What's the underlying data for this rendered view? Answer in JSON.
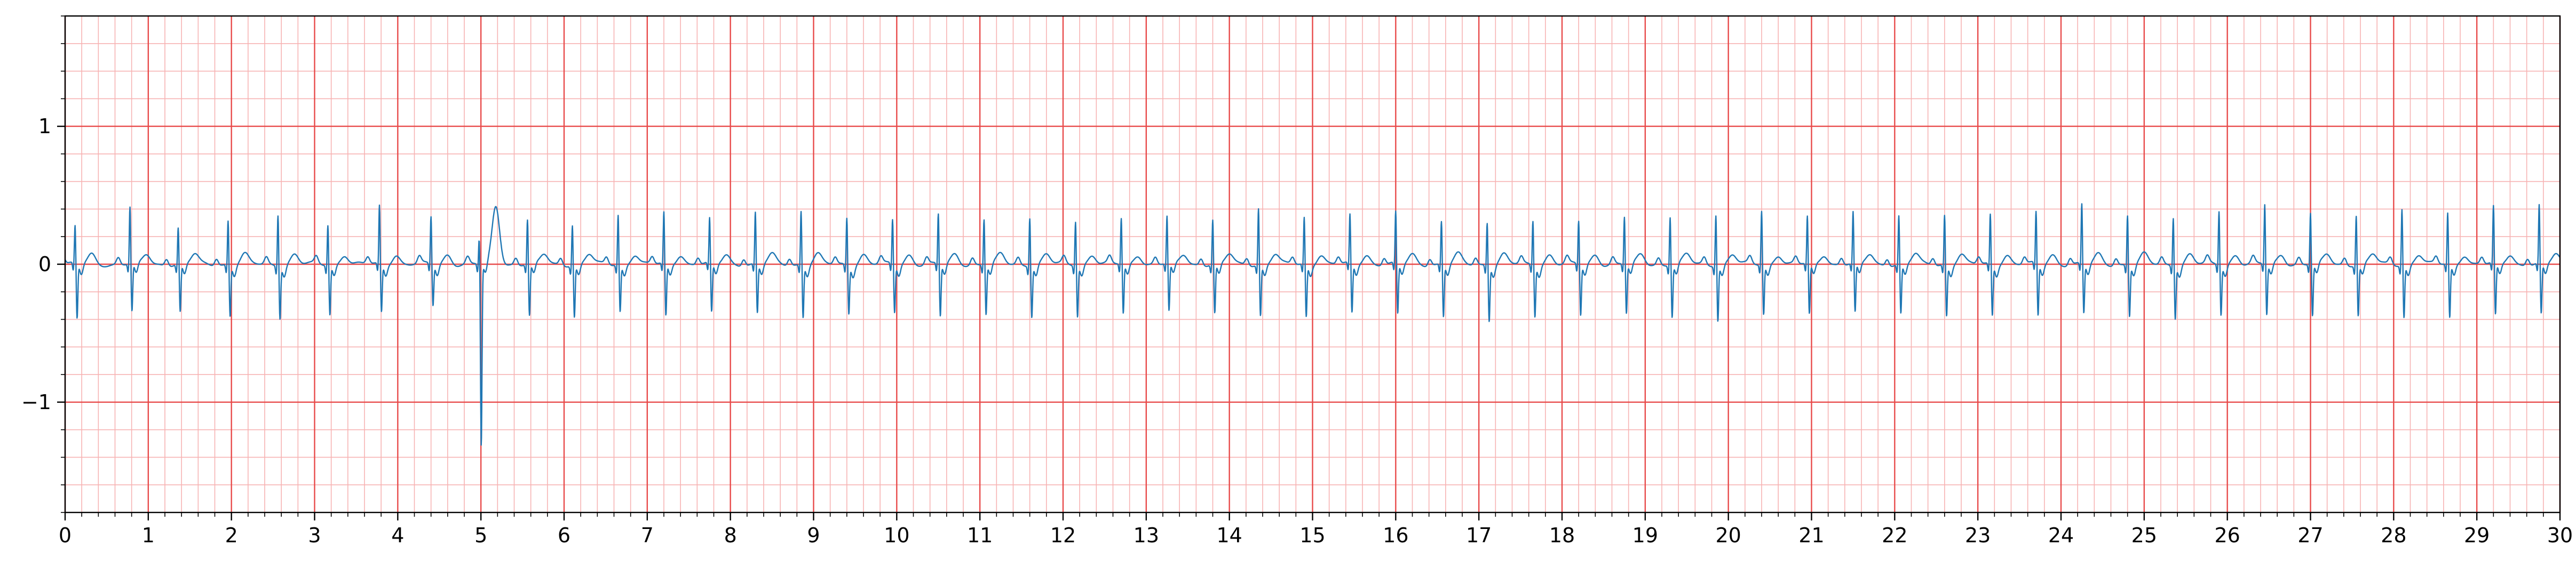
{
  "chart_data": {
    "type": "line",
    "title": "",
    "xlabel": "",
    "ylabel": "",
    "xlim": [
      0,
      30
    ],
    "ylim": [
      -1.8,
      1.8
    ],
    "x_ticks": [
      0,
      1,
      2,
      3,
      4,
      5,
      6,
      7,
      8,
      9,
      10,
      11,
      12,
      13,
      14,
      15,
      16,
      17,
      18,
      19,
      20,
      21,
      22,
      23,
      24,
      25,
      26,
      27,
      28,
      29,
      30
    ],
    "y_ticks": [
      -1,
      0,
      1
    ],
    "y_tick_labels": [
      "−1",
      "0",
      "1"
    ],
    "grid": {
      "major": true,
      "major_x_step": 1,
      "major_y_step": 1,
      "major_color": "#e84a4a",
      "minor": true,
      "minor_x_step": 0.2,
      "minor_y_step": 0.2,
      "minor_color": "#f7b3b3"
    },
    "line_color": "#1f77b4",
    "series": [
      {
        "beat_times": [
          0.12,
          0.78,
          1.36,
          1.96,
          2.56,
          3.16,
          3.78,
          4.4,
          4.98,
          5.56,
          6.1,
          6.65,
          7.2,
          7.75,
          8.3,
          8.85,
          9.4,
          9.95,
          10.5,
          11.05,
          11.6,
          12.15,
          12.7,
          13.25,
          13.8,
          14.35,
          14.9,
          15.45,
          16.0,
          16.55,
          17.1,
          17.65,
          18.2,
          18.75,
          19.3,
          19.85,
          20.4,
          20.95,
          21.5,
          22.05,
          22.6,
          23.15,
          23.7,
          24.25,
          24.8,
          25.35,
          25.9,
          26.45,
          27.0,
          27.55,
          28.1,
          28.65,
          29.2,
          29.75
        ],
        "r_peak": [
          0.28,
          0.42,
          0.27,
          0.33,
          0.38,
          0.3,
          0.43,
          0.35,
          0.2,
          0.33,
          0.3,
          0.37,
          0.38,
          0.33,
          0.38,
          0.4,
          0.35,
          0.33,
          0.37,
          0.34,
          0.36,
          0.33,
          0.34,
          0.35,
          0.33,
          0.42,
          0.35,
          0.36,
          0.38,
          0.32,
          0.32,
          0.33,
          0.32,
          0.35,
          0.36,
          0.38,
          0.4,
          0.35,
          0.38,
          0.36,
          0.37,
          0.37,
          0.38,
          0.44,
          0.37,
          0.36,
          0.4,
          0.44,
          0.38,
          0.37,
          0.42,
          0.38,
          0.42,
          0.43
        ],
        "s_trough": [
          -0.4,
          -0.35,
          -0.35,
          -0.37,
          -0.38,
          -0.36,
          -0.35,
          -0.3,
          -1.32,
          -0.38,
          -0.38,
          -0.34,
          -0.38,
          -0.36,
          -0.36,
          -0.38,
          -0.35,
          -0.35,
          -0.38,
          -0.36,
          -0.37,
          -0.37,
          -0.36,
          -0.35,
          -0.36,
          -0.37,
          -0.38,
          -0.36,
          -0.37,
          -0.38,
          -0.4,
          -0.37,
          -0.37,
          -0.36,
          -0.38,
          -0.4,
          -0.36,
          -0.37,
          -0.36,
          -0.36,
          -0.37,
          -0.37,
          -0.38,
          -0.36,
          -0.37,
          -0.38,
          -0.36,
          -0.37,
          -0.38,
          -0.37,
          -0.38,
          -0.39,
          -0.38,
          -0.37
        ]
      }
    ]
  }
}
